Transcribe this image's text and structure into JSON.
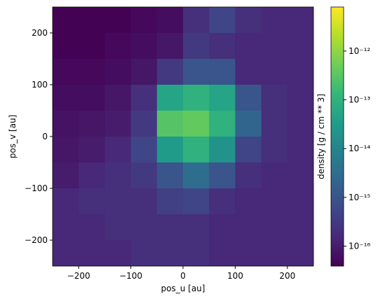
{
  "chart_data": {
    "type": "heatmap",
    "xlabel": "pos_u [au]",
    "ylabel": "pos_v [au]",
    "colorbar_label": "density [g / cm ** 3]",
    "colormap": "viridis",
    "color_scale": "log",
    "x": [
      -225,
      -175,
      -125,
      -75,
      -25,
      25,
      75,
      125,
      175,
      225
    ],
    "y": [
      225,
      175,
      125,
      75,
      25,
      -25,
      -75,
      -125,
      -175,
      -225
    ],
    "z": [
      [
        4e-17,
        4e-17,
        4e-17,
        5e-17,
        6e-17,
        2e-16,
        5e-16,
        2e-16,
        1.5e-16,
        1.5e-16
      ],
      [
        4e-17,
        4e-17,
        5e-17,
        6e-17,
        8e-17,
        3e-16,
        2e-16,
        1.5e-16,
        1.5e-16,
        1.5e-16
      ],
      [
        5e-17,
        5e-17,
        6e-17,
        8e-17,
        3e-16,
        1e-15,
        1e-15,
        1.5e-16,
        1.5e-16,
        1.5e-16
      ],
      [
        6e-17,
        6e-17,
        8e-17,
        2e-16,
        5e-14,
        1e-13,
        5e-14,
        1e-15,
        2e-16,
        1.5e-16
      ],
      [
        7e-17,
        8e-17,
        1e-16,
        3e-16,
        3e-13,
        4e-13,
        1e-13,
        2e-15,
        2e-16,
        1.5e-16
      ],
      [
        8e-17,
        1e-16,
        1.5e-16,
        5e-16,
        3e-14,
        1e-13,
        2e-14,
        5e-16,
        2e-16,
        1.5e-16
      ],
      [
        1e-16,
        1.5e-16,
        2e-16,
        3e-16,
        1e-15,
        3e-15,
        1e-15,
        2e-16,
        1.5e-16,
        1.5e-16
      ],
      [
        1.5e-16,
        2e-16,
        2e-16,
        2e-16,
        4e-16,
        5e-16,
        2e-16,
        1.5e-16,
        1.5e-16,
        1.5e-16
      ],
      [
        1.5e-16,
        1.5e-16,
        2e-16,
        2e-16,
        2e-16,
        2e-16,
        1.5e-16,
        1.5e-16,
        1.5e-16,
        1.5e-16
      ],
      [
        1.5e-16,
        1.5e-16,
        1.5e-16,
        2e-16,
        2e-16,
        2e-16,
        1.5e-16,
        1.5e-16,
        1.5e-16,
        1.5e-16
      ]
    ],
    "xlim": [
      -250,
      250
    ],
    "ylim": [
      -250,
      250
    ],
    "xticks": [
      {
        "value": -200,
        "label": "−200"
      },
      {
        "value": -100,
        "label": "−100"
      },
      0,
      100,
      200
    ],
    "yticks": [
      {
        "value": -200,
        "label": "−200"
      },
      {
        "value": -100,
        "label": "−100"
      },
      0,
      100,
      200
    ],
    "clim": [
      3.9e-17,
      8e-12
    ],
    "cticks": [
      {
        "value": 1e-16,
        "label": "10⁻¹⁶"
      },
      {
        "value": 1e-15,
        "label": "10⁻¹⁵"
      },
      {
        "value": 1e-14,
        "label": "10⁻¹⁴"
      },
      {
        "value": 1e-13,
        "label": "10⁻¹³"
      },
      {
        "value": 1e-12,
        "label": "10⁻¹²"
      }
    ]
  }
}
